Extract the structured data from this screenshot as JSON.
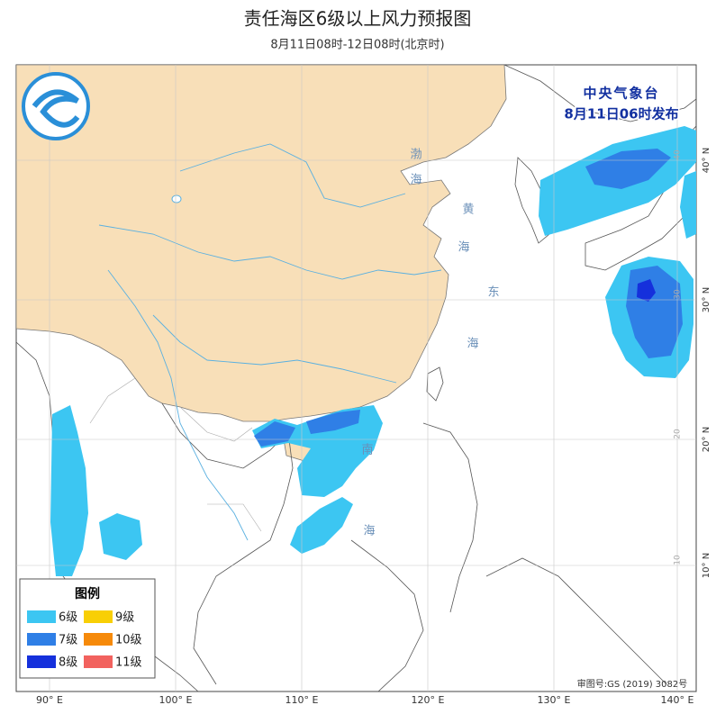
{
  "header": {
    "title": "责任海区6级以上风力预报图",
    "subtitle": "8月11日08时-12日08时(北京时)"
  },
  "issuer": {
    "name": "中央气象台",
    "time": "8月11日06时发布"
  },
  "legend": {
    "title": "图例",
    "items": [
      {
        "label": "6级",
        "color": "#3cc6f2"
      },
      {
        "label": "9级",
        "color": "#f8cf05"
      },
      {
        "label": "7级",
        "color": "#2f7fe6"
      },
      {
        "label": "10级",
        "color": "#f68a0a"
      },
      {
        "label": "8级",
        "color": "#1530dc"
      },
      {
        "label": "11级",
        "color": "#f2625e"
      }
    ]
  },
  "longitude_labels": [
    "90° E",
    "100° E",
    "110° E",
    "120° E",
    "130° E",
    "140° E"
  ],
  "latitude_labels": [
    "40° N",
    "30° N",
    "20° N",
    "10° N"
  ],
  "grid_labels": [
    "40",
    "30",
    "20",
    "10"
  ],
  "sea_labels": [
    "渤",
    "海",
    "黄",
    "海",
    "东",
    "海",
    "南",
    "海"
  ],
  "footer": "审图号:GS (2019) 3082号"
}
